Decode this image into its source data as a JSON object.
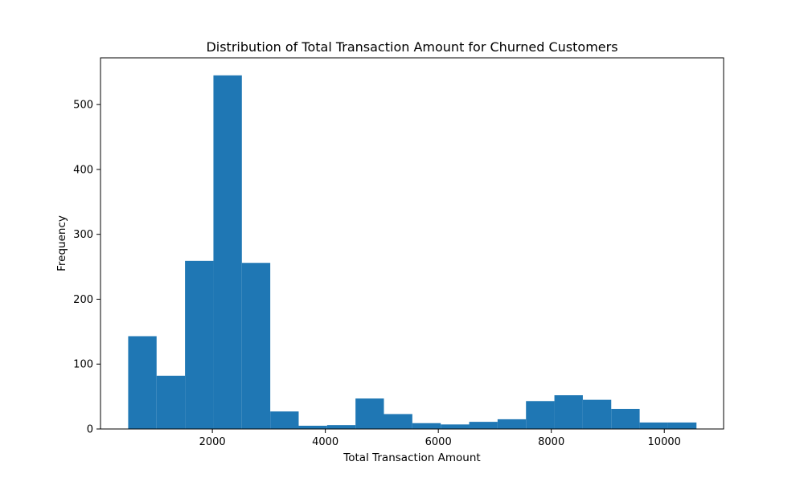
{
  "chart_data": {
    "type": "bar",
    "title": "Distribution of Total Transaction Amount for Churned Customers",
    "xlabel": "Total Transaction Amount",
    "ylabel": "Frequency",
    "bar_color": "#1f77b4",
    "xlim": [
      20,
      11050
    ],
    "ylim": [
      0,
      572
    ],
    "x_ticks": [
      2000,
      4000,
      6000,
      8000,
      10000
    ],
    "x_tick_labels": [
      "2000",
      "4000",
      "6000",
      "8000",
      "10000"
    ],
    "y_ticks": [
      0,
      100,
      200,
      300,
      400,
      500
    ],
    "y_tick_labels": [
      "0",
      "100",
      "200",
      "300",
      "400",
      "500"
    ],
    "bins": [
      {
        "start": 510,
        "end": 1013,
        "count": 143
      },
      {
        "start": 1013,
        "end": 1516,
        "count": 82
      },
      {
        "start": 1516,
        "end": 2019,
        "count": 259
      },
      {
        "start": 2019,
        "end": 2522,
        "count": 545
      },
      {
        "start": 2522,
        "end": 3025,
        "count": 256
      },
      {
        "start": 3025,
        "end": 3528,
        "count": 27
      },
      {
        "start": 3528,
        "end": 4031,
        "count": 5
      },
      {
        "start": 4031,
        "end": 4534,
        "count": 6
      },
      {
        "start": 4534,
        "end": 5037,
        "count": 47
      },
      {
        "start": 5037,
        "end": 5540,
        "count": 23
      },
      {
        "start": 5540,
        "end": 6043,
        "count": 9
      },
      {
        "start": 6043,
        "end": 6546,
        "count": 7
      },
      {
        "start": 6546,
        "end": 7049,
        "count": 11
      },
      {
        "start": 7049,
        "end": 7552,
        "count": 15
      },
      {
        "start": 7552,
        "end": 8055,
        "count": 43
      },
      {
        "start": 8055,
        "end": 8558,
        "count": 52
      },
      {
        "start": 8558,
        "end": 9061,
        "count": 45
      },
      {
        "start": 9061,
        "end": 9564,
        "count": 31
      },
      {
        "start": 9564,
        "end": 10067,
        "count": 10
      },
      {
        "start": 10067,
        "end": 10570,
        "count": 10
      }
    ]
  }
}
